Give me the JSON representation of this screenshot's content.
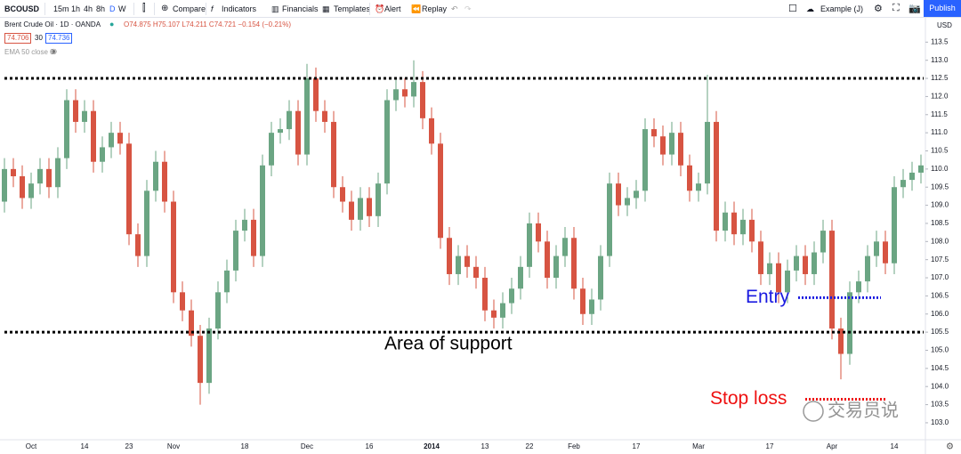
{
  "toolbar": {
    "symbol": "BCOUSD",
    "intervals": [
      "15m",
      "1h",
      "4h",
      "8h",
      "D",
      "W"
    ],
    "buttons": [
      "Compare",
      "Indicators",
      "Financials",
      "Templates",
      "Alert",
      "Replay"
    ],
    "layout": "Example (J)",
    "publish": "Publish"
  },
  "legend": {
    "title": "Brent Crude Oil · 1D · OANDA",
    "ohlc": "O74.875 H75.107 L74.211 C74.721 −0.154 (−0.21%)",
    "bid": "74.706",
    "spread": "30",
    "ask": "74.736",
    "indicator": "EMA 50 close 0"
  },
  "watermark": "交易员说",
  "chart_data": {
    "type": "candlestick",
    "currency": "USD",
    "up_color": "#6ba583",
    "down_color": "#d75442",
    "categories": [
      null,
      null,
      null,
      "Oct",
      null,
      null,
      null,
      null,
      null,
      "14",
      null,
      null,
      null,
      null,
      "23",
      null,
      null,
      null,
      null,
      "Nov",
      null,
      null,
      null,
      null,
      null,
      null,
      null,
      "18",
      null,
      null,
      null,
      null,
      null,
      null,
      "Dec",
      null,
      null,
      null,
      null,
      null,
      null,
      "16",
      null,
      null,
      null,
      null,
      null,
      null,
      "2014",
      null,
      null,
      null,
      null,
      null,
      "13",
      null,
      null,
      null,
      null,
      "22",
      null,
      null,
      null,
      null,
      "Feb",
      null,
      null,
      null,
      null,
      null,
      null,
      "17",
      null,
      null,
      null,
      null,
      null,
      null,
      "Mar",
      null,
      null,
      null,
      null,
      null,
      null,
      null,
      "17",
      null,
      null,
      null,
      null,
      null,
      null,
      "Apr",
      null,
      null,
      null,
      null,
      null,
      null,
      "14",
      null,
      null,
      null
    ],
    "open": [
      109.1,
      110.0,
      109.8,
      109.2,
      109.6,
      110.0,
      109.5,
      110.3,
      111.9,
      111.3,
      111.6,
      110.2,
      110.6,
      111.0,
      110.7,
      108.2,
      107.6,
      109.4,
      110.2,
      109.1,
      106.6,
      106.1,
      105.4,
      104.1,
      105.6,
      106.6,
      107.2,
      108.3,
      108.6,
      107.6,
      110.1,
      111.0,
      111.1,
      111.6,
      110.4,
      112.5,
      111.6,
      111.3,
      109.5,
      109.1,
      108.6,
      109.2,
      108.7,
      109.6,
      111.9,
      112.2,
      112.0,
      112.4,
      111.4,
      110.7,
      108.1,
      107.1,
      107.6,
      107.3,
      107.0,
      106.1,
      105.9,
      106.3,
      106.7,
      107.3,
      108.5,
      108.0,
      107.0,
      107.6,
      108.1,
      106.7,
      106.0,
      106.4,
      107.6,
      109.6,
      109.0,
      109.2,
      109.4,
      111.1,
      110.9,
      110.4,
      111.0,
      110.1,
      109.4,
      109.6,
      111.3,
      108.3,
      108.8,
      108.2,
      108.6,
      108.0,
      107.1,
      107.4,
      106.6,
      107.2,
      107.6,
      107.1,
      107.7,
      108.3,
      105.6,
      104.9,
      106.6,
      106.9,
      107.6,
      108.0,
      107.4,
      109.5,
      109.7,
      109.9
    ],
    "high": [
      110.3,
      110.3,
      110.1,
      109.9,
      110.3,
      110.3,
      110.6,
      112.2,
      112.2,
      111.9,
      111.9,
      110.9,
      111.3,
      111.3,
      111.0,
      108.5,
      109.7,
      110.5,
      110.5,
      109.4,
      106.9,
      106.4,
      105.7,
      105.9,
      106.9,
      107.5,
      108.6,
      108.9,
      108.9,
      110.4,
      111.3,
      111.4,
      111.9,
      111.9,
      112.9,
      112.8,
      111.9,
      111.6,
      109.8,
      109.4,
      109.5,
      109.5,
      109.9,
      112.2,
      112.5,
      112.5,
      113.0,
      112.7,
      111.7,
      111.0,
      108.4,
      107.9,
      107.9,
      107.6,
      107.3,
      106.4,
      106.6,
      107.0,
      107.6,
      108.8,
      108.8,
      108.3,
      107.9,
      108.4,
      108.4,
      107.0,
      106.7,
      107.9,
      109.9,
      109.9,
      109.5,
      109.7,
      111.4,
      111.4,
      111.2,
      111.3,
      111.3,
      110.4,
      109.9,
      112.6,
      111.6,
      109.1,
      109.1,
      108.9,
      108.9,
      108.3,
      107.7,
      107.7,
      107.5,
      107.9,
      107.9,
      108.0,
      108.6,
      108.6,
      105.9,
      106.9,
      107.2,
      107.9,
      108.3,
      108.3,
      109.8,
      110.0,
      110.2,
      110.4
    ],
    "low": [
      108.8,
      109.5,
      108.9,
      108.9,
      109.3,
      109.2,
      109.2,
      110.0,
      111.0,
      111.0,
      109.9,
      109.9,
      110.3,
      110.4,
      107.9,
      107.3,
      107.3,
      109.1,
      108.8,
      106.3,
      105.8,
      105.1,
      103.5,
      103.8,
      105.3,
      106.3,
      106.9,
      108.0,
      107.3,
      107.3,
      109.8,
      110.7,
      110.8,
      110.1,
      110.1,
      111.3,
      111.0,
      109.2,
      108.8,
      108.3,
      108.3,
      108.4,
      108.4,
      109.3,
      111.6,
      111.7,
      111.7,
      111.1,
      110.4,
      107.8,
      106.8,
      106.8,
      107.0,
      106.7,
      105.8,
      105.6,
      105.6,
      106.0,
      106.4,
      107.0,
      107.7,
      106.7,
      106.7,
      107.3,
      106.4,
      105.7,
      105.7,
      106.1,
      107.3,
      108.7,
      108.7,
      108.9,
      109.1,
      110.6,
      110.1,
      110.1,
      109.8,
      109.1,
      109.1,
      109.3,
      108.0,
      108.0,
      107.9,
      107.9,
      107.7,
      106.8,
      106.8,
      106.3,
      106.3,
      106.9,
      106.8,
      106.8,
      107.4,
      105.3,
      104.2,
      104.6,
      106.3,
      106.6,
      107.3,
      107.1,
      107.1,
      109.2,
      109.4,
      109.6
    ],
    "close": [
      110.0,
      109.8,
      109.2,
      109.6,
      110.0,
      109.5,
      110.3,
      111.9,
      111.3,
      111.6,
      110.2,
      110.6,
      111.0,
      110.7,
      108.2,
      107.6,
      109.4,
      110.2,
      109.1,
      106.6,
      106.1,
      105.4,
      104.1,
      105.6,
      106.6,
      107.2,
      108.3,
      108.6,
      107.6,
      110.1,
      111.0,
      111.1,
      111.6,
      110.4,
      112.5,
      111.6,
      111.3,
      109.5,
      109.1,
      108.6,
      109.2,
      108.7,
      109.6,
      111.9,
      112.2,
      112.0,
      112.4,
      111.4,
      110.7,
      108.1,
      107.1,
      107.6,
      107.3,
      107.0,
      106.1,
      105.9,
      106.3,
      106.7,
      107.3,
      108.5,
      108.0,
      107.0,
      107.6,
      108.1,
      106.7,
      106.0,
      106.4,
      107.6,
      109.6,
      109.0,
      109.2,
      109.4,
      111.1,
      110.9,
      110.4,
      111.0,
      110.1,
      109.4,
      109.6,
      111.3,
      108.3,
      108.8,
      108.2,
      108.6,
      108.0,
      107.1,
      107.4,
      106.6,
      107.2,
      107.6,
      107.1,
      107.7,
      108.3,
      105.6,
      104.9,
      106.6,
      106.9,
      107.6,
      108.0,
      107.4,
      109.5,
      109.7,
      109.9,
      110.1
    ],
    "ylim": [
      102.63,
      113.68
    ],
    "yticks": [
      113.5,
      {
        "value": 113,
        "label": "113.0"
      },
      112.5,
      {
        "value": 112,
        "label": "112.0"
      },
      111.5,
      {
        "value": 111,
        "label": "111.0"
      },
      110.5,
      {
        "value": 110,
        "label": "110.0"
      },
      109.5,
      {
        "value": 109,
        "label": "109.0"
      },
      108.5,
      {
        "value": 108,
        "label": "108.0"
      },
      107.5,
      {
        "value": 107,
        "label": "107.0"
      },
      106.5,
      {
        "value": 106,
        "label": "106.0"
      },
      105.5,
      {
        "value": 105,
        "label": "105.0"
      },
      104.5,
      {
        "value": 104,
        "label": "104.0"
      },
      103.5,
      {
        "value": 103,
        "label": "103.0"
      }
    ],
    "levels": [
      112.5,
      105.5
    ],
    "annotations": [
      {
        "text": "Area of support",
        "price": 105.5,
        "color": "#000000"
      },
      {
        "text": "Entry",
        "price": 106.45,
        "color": "#1a1ae0"
      },
      {
        "text": "Stop loss",
        "price": 103.65,
        "color": "#ee1111"
      }
    ]
  }
}
